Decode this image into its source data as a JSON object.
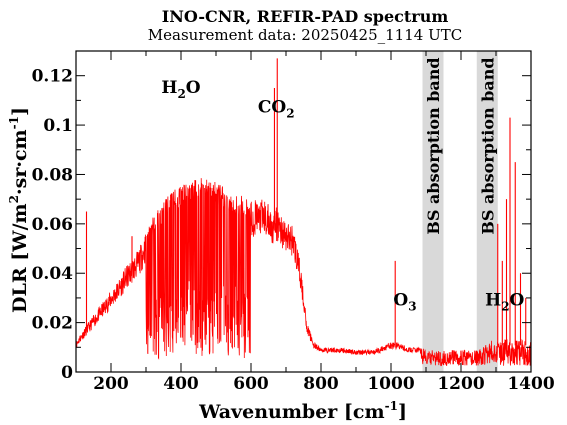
{
  "chart_data": {
    "type": "line",
    "title": "INO-CNR, REFIR-PAD spectrum",
    "subtitle": "Measurement data: 20250425_1114 UTC",
    "xlabel": {
      "base": "Wavenumber [cm",
      "sup": "-1",
      "tail": "]"
    },
    "ylabel": {
      "base": "DLR [W/m",
      "sup1": "2",
      "mid": "·sr·cm",
      "sup2": "-1",
      "tail": "]"
    },
    "xlim": [
      100,
      1400
    ],
    "ylim": [
      0,
      0.13
    ],
    "x_ticks": [
      200,
      400,
      600,
      800,
      1000,
      1200,
      1400
    ],
    "x_tick_labels": [
      "200",
      "400",
      "600",
      "800",
      "1000",
      "1200",
      "1400"
    ],
    "y_ticks": [
      0,
      0.02,
      0.04,
      0.06,
      0.08,
      0.1,
      0.12
    ],
    "y_tick_labels": [
      "0",
      "0.02",
      "0.04",
      "0.06",
      "0.08",
      "0.1",
      "0.12"
    ],
    "grid": false,
    "series": [
      {
        "color": "#ff0000",
        "envelope_x": [
          100,
          110,
          120,
          140,
          160,
          180,
          200,
          220,
          240,
          260,
          280,
          300,
          320,
          340,
          360,
          380,
          400,
          420,
          440,
          460,
          480,
          500,
          520,
          540,
          560,
          580,
          600,
          620,
          640,
          660,
          670,
          680,
          700,
          720,
          740,
          760,
          780,
          800,
          850,
          900,
          950,
          1000,
          1020,
          1050,
          1080,
          1100,
          1150,
          1200,
          1250,
          1290,
          1300,
          1320,
          1340,
          1360,
          1380,
          1400
        ],
        "envelope_y": [
          0.012,
          0.015,
          0.017,
          0.021,
          0.025,
          0.029,
          0.033,
          0.037,
          0.042,
          0.046,
          0.05,
          0.057,
          0.063,
          0.067,
          0.071,
          0.074,
          0.076,
          0.077,
          0.078,
          0.079,
          0.079,
          0.077,
          0.075,
          0.073,
          0.072,
          0.071,
          0.07,
          0.07,
          0.07,
          0.066,
          0.067,
          0.066,
          0.061,
          0.06,
          0.045,
          0.02,
          0.012,
          0.01,
          0.01,
          0.009,
          0.009,
          0.012,
          0.012,
          0.01,
          0.01,
          0.008,
          0.008,
          0.008,
          0.008,
          0.012,
          0.012,
          0.012,
          0.012,
          0.012,
          0.012,
          0.012
        ],
        "spikes": [
          {
            "x": 675,
            "y": 0.127
          },
          {
            "x": 667,
            "y": 0.115
          },
          {
            "x": 1340,
            "y": 0.103
          },
          {
            "x": 1355,
            "y": 0.085
          },
          {
            "x": 1330,
            "y": 0.07
          },
          {
            "x": 1305,
            "y": 0.06
          },
          {
            "x": 1012,
            "y": 0.045
          },
          {
            "x": 1318,
            "y": 0.045
          },
          {
            "x": 1370,
            "y": 0.04
          },
          {
            "x": 1385,
            "y": 0.03
          },
          {
            "x": 130,
            "y": 0.065
          },
          {
            "x": 260,
            "y": 0.055
          }
        ]
      }
    ],
    "shaded_bands": [
      {
        "x0": 1090,
        "x1": 1150,
        "label": "BS absorption band"
      },
      {
        "x0": 1245,
        "x1": 1305,
        "label": "BS absorption band"
      }
    ],
    "annotations": [
      {
        "text": "H",
        "sub": "2",
        "tail": "O",
        "x": 400,
        "y": 0.113
      },
      {
        "text": "CO",
        "sub": "2",
        "tail": "",
        "x": 672,
        "y": 0.105
      },
      {
        "text": "O",
        "sub": "3",
        "tail": "",
        "x": 1040,
        "y": 0.027
      },
      {
        "text": "H",
        "sub": "2",
        "tail": "O",
        "x": 1325,
        "y": 0.027
      }
    ]
  }
}
